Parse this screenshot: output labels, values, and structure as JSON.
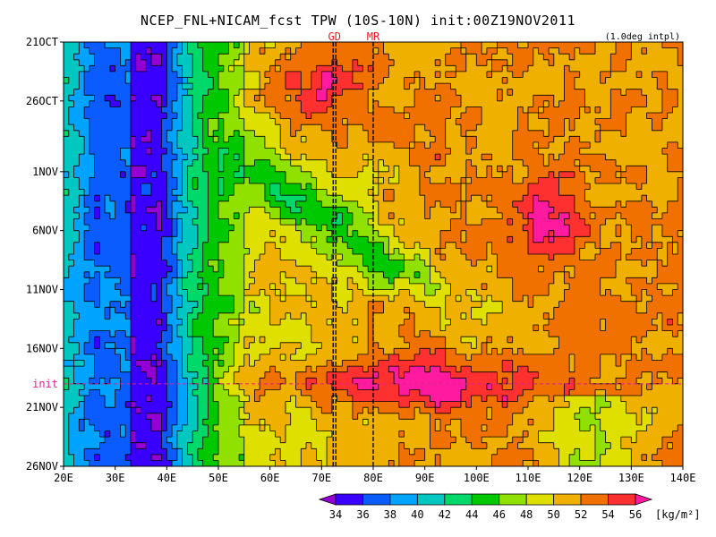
{
  "title": "NCEP_FNL+NICAM_fcst TPW (10S-10N) init:00Z19NOV2011",
  "note": "(1.0deg intpl)",
  "colors": {
    "levels": [
      "#9400d3",
      "#3a00ff",
      "#0a5cff",
      "#00a4ff",
      "#00c8c0",
      "#00d86a",
      "#00c800",
      "#90e000",
      "#e0e000",
      "#f0b000",
      "#f07000",
      "#ff3030",
      "#ff1aa0"
    ]
  },
  "chart_data": {
    "type": "heatmap",
    "title": "NCEP_FNL+NICAM_fcst TPW (10S-10N) init:00Z19NOV2011",
    "xlabel": "",
    "ylabel": "",
    "xlim": [
      20,
      140
    ],
    "ylim": [
      "21OCT",
      "26NOV"
    ],
    "x_ticks": [
      "20E",
      "30E",
      "40E",
      "50E",
      "60E",
      "70E",
      "80E",
      "90E",
      "100E",
      "110E",
      "120E",
      "130E",
      "140E"
    ],
    "y_ticks": [
      "21OCT",
      "26OCT",
      "1NOV",
      "6NOV",
      "11NOV",
      "16NOV",
      "21NOV",
      "26NOV"
    ],
    "init_label": "init",
    "markers": [
      {
        "label": "GD",
        "lon": 72.5
      },
      {
        "label": "MR",
        "lon": 80
      }
    ],
    "colorbar": {
      "levels": [
        34,
        36,
        38,
        40,
        42,
        44,
        46,
        48,
        50,
        52,
        54,
        56
      ],
      "unit": "[kg/m²]"
    }
  }
}
